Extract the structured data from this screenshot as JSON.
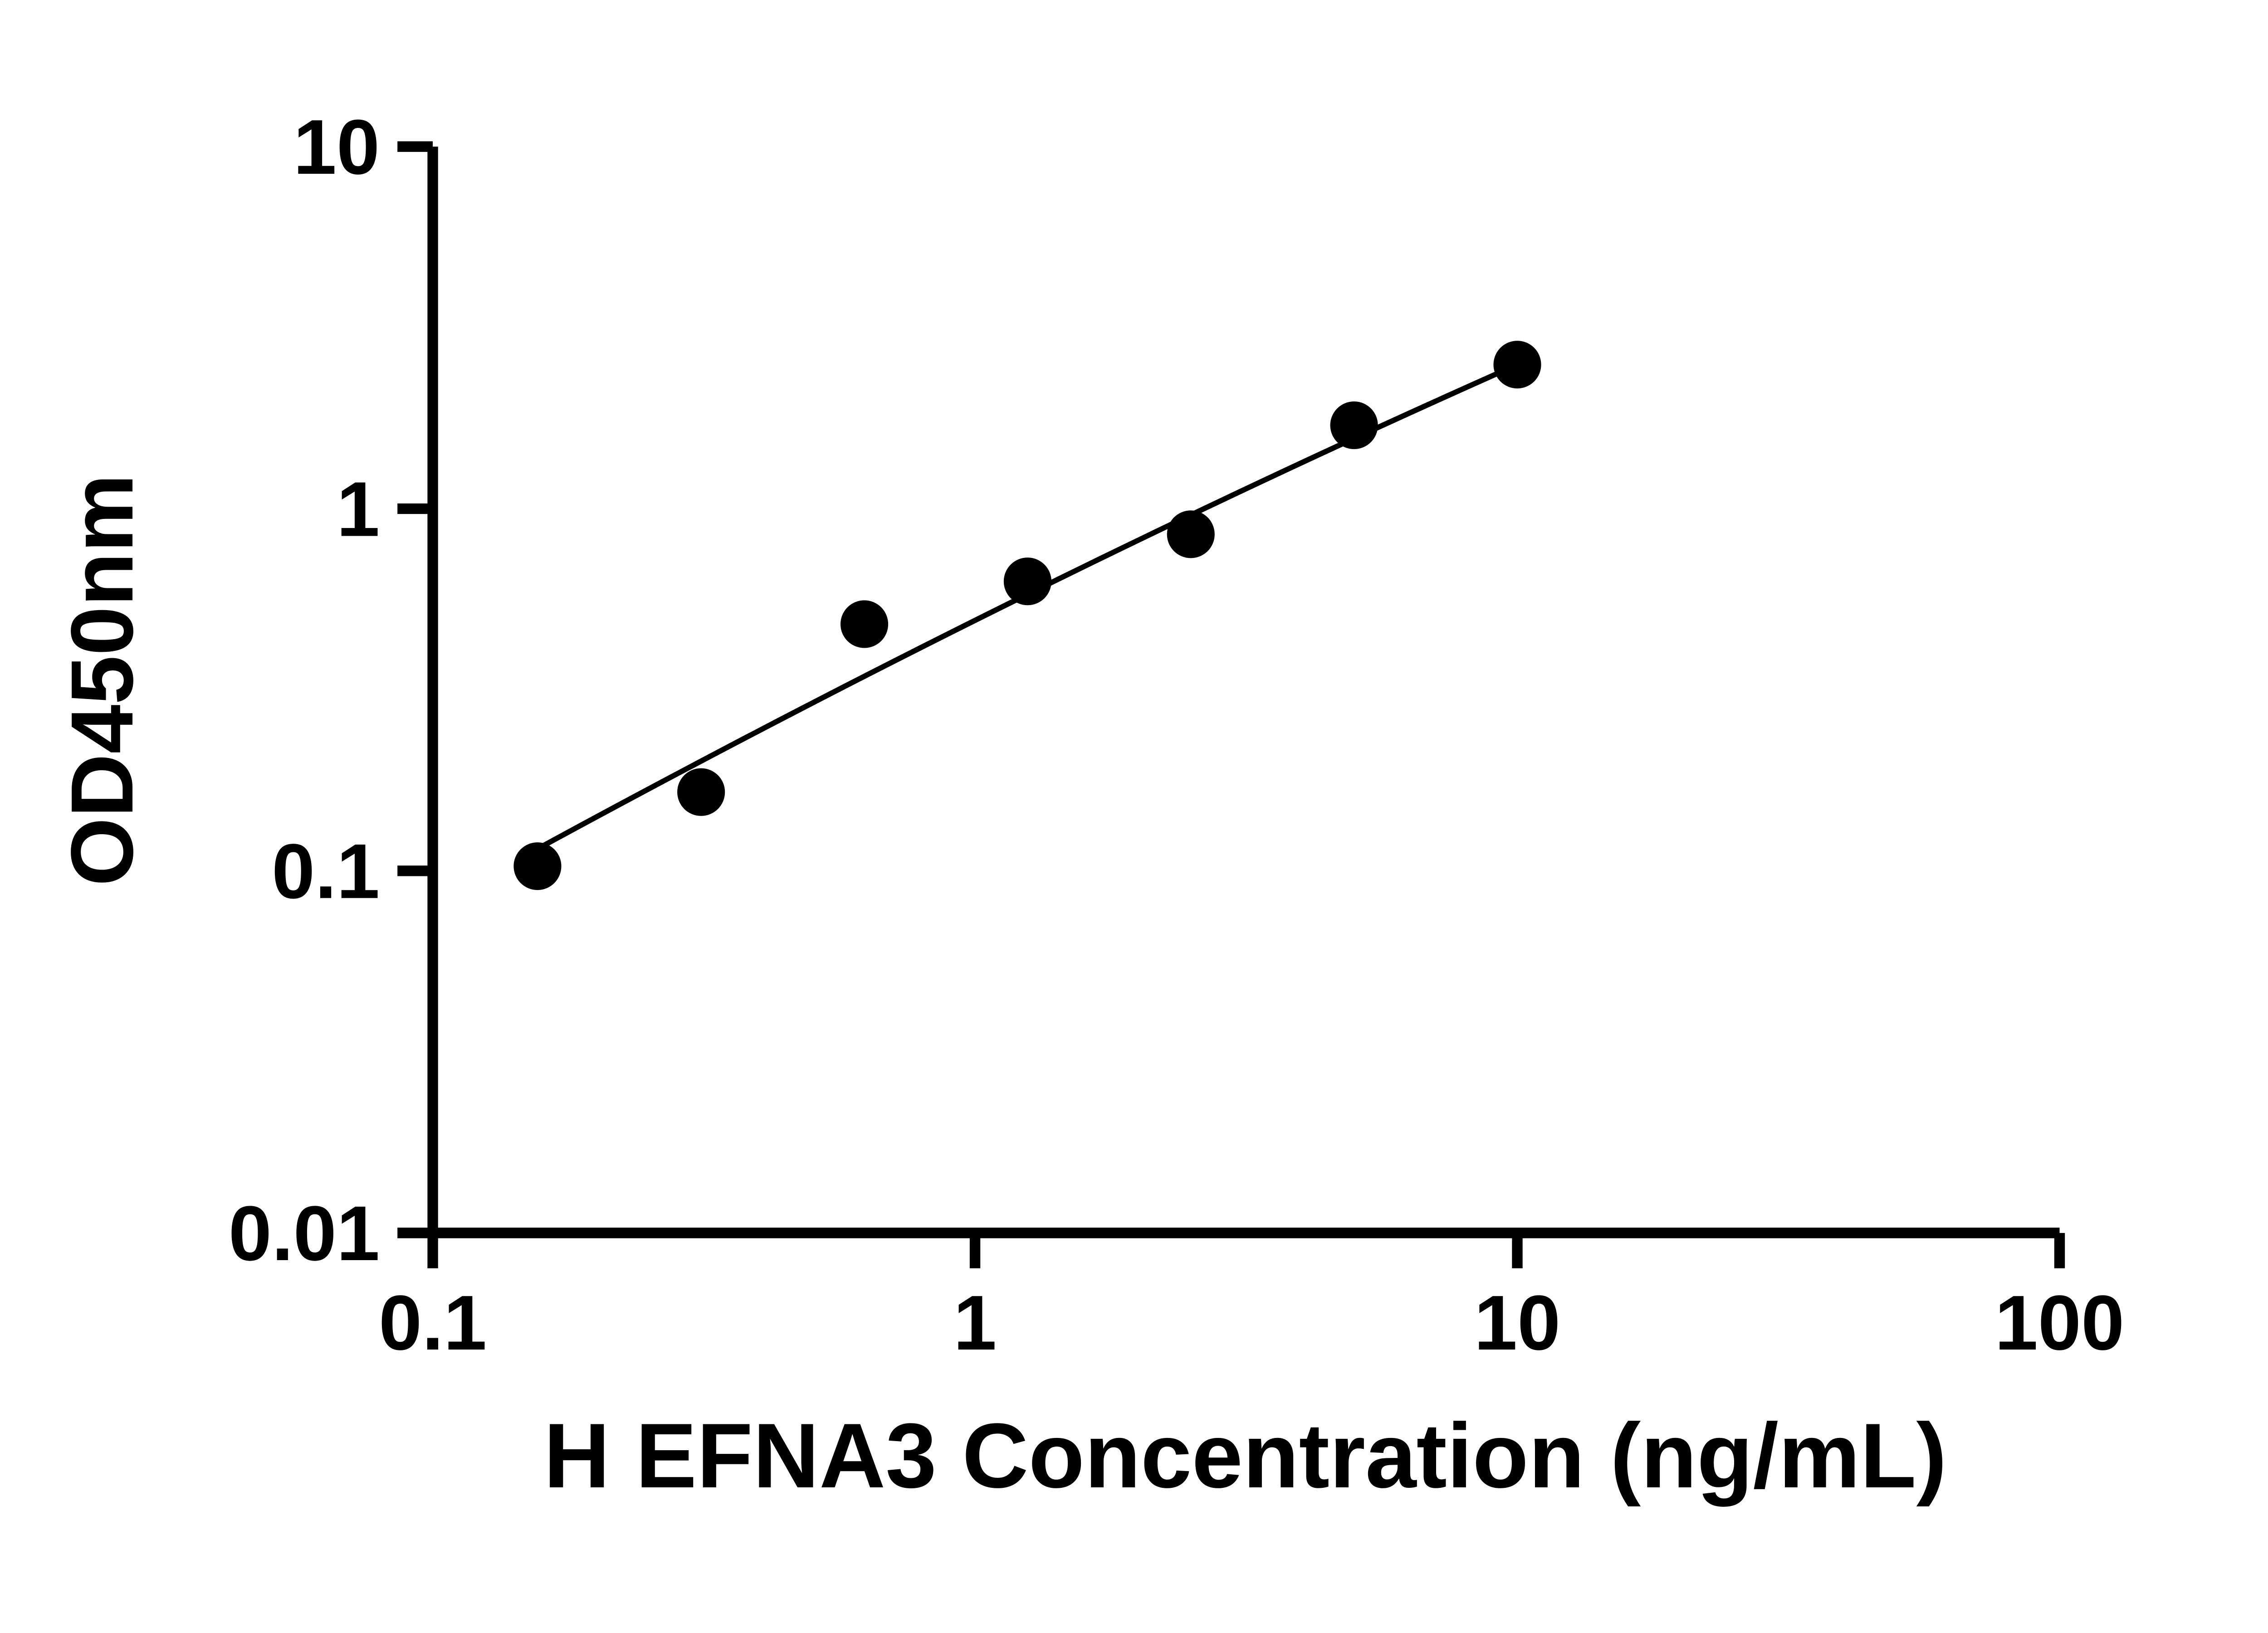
{
  "figure": {
    "background": "#ffffff"
  },
  "chart_data": {
    "type": "scatter",
    "title": "",
    "xlabel": "H EFNA3 Concentration (ng/mL)",
    "ylabel": "OD450nm",
    "x_scale": "log10",
    "y_scale": "log10",
    "xlim": [
      0.1,
      100
    ],
    "ylim": [
      0.01,
      10
    ],
    "grid": false,
    "legend": "none",
    "axis_color": "#000000",
    "marker_color": "#000000",
    "line_color": "#000000",
    "x_ticks": [
      {
        "value": 0.1,
        "label": "0.1"
      },
      {
        "value": 1,
        "label": "1"
      },
      {
        "value": 10,
        "label": "10"
      },
      {
        "value": 100,
        "label": "100"
      }
    ],
    "y_ticks": [
      {
        "value": 10,
        "label": "10"
      },
      {
        "value": 1,
        "label": "1"
      },
      {
        "value": 0.1,
        "label": "0.1"
      },
      {
        "value": 0.01,
        "label": "0.01"
      }
    ],
    "points": [
      {
        "x": 0.156,
        "y": 0.103
      },
      {
        "x": 0.3125,
        "y": 0.165
      },
      {
        "x": 0.625,
        "y": 0.48
      },
      {
        "x": 1.25,
        "y": 0.63
      },
      {
        "x": 2.5,
        "y": 0.85
      },
      {
        "x": 5,
        "y": 1.7
      },
      {
        "x": 10,
        "y": 2.5
      }
    ],
    "fit_line": {
      "x_start": 0.156,
      "y_start": 0.115,
      "x_end": 10,
      "y_end": 2.5,
      "bow": 14,
      "color": "#000000"
    }
  }
}
